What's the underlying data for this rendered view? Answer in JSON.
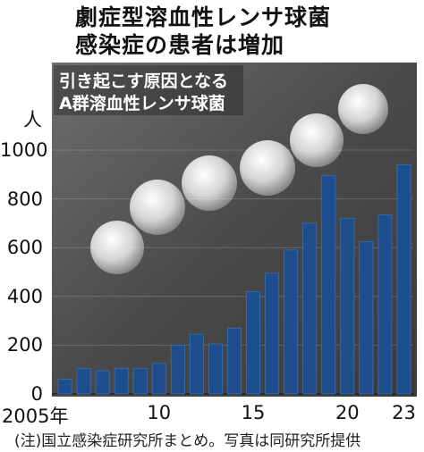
{
  "title_lines": [
    "劇症型溶血性レンサ球菌",
    "感染症の患者は増加"
  ],
  "photo_caption_lines": [
    "引き起こす原因となる",
    "A群溶血性レンサ球菌"
  ],
  "note": "(注)国立感染症研究所まとめ。写真は同研究所提供",
  "colors": {
    "bar": "#1f4e8c",
    "bar_edge": "#3b6fb3",
    "photo_bg": "#5a5a5a"
  },
  "chart_data": {
    "type": "bar",
    "title": "劇症型溶血性レンサ球菌感染症の患者は増加",
    "ylabel": "人",
    "ylim": [
      0,
      1000
    ],
    "yticks": [
      "0",
      "200",
      "400",
      "600",
      "800",
      "1000"
    ],
    "x": [
      2005,
      2006,
      2007,
      2008,
      2009,
      2010,
      2011,
      2012,
      2013,
      2014,
      2015,
      2016,
      2017,
      2018,
      2019,
      2020,
      2021,
      2022,
      2023
    ],
    "xtick_labels": [
      {
        "year": 2005,
        "label": "2005年"
      },
      {
        "year": 2010,
        "label": "10"
      },
      {
        "year": 2015,
        "label": "15"
      },
      {
        "year": 2020,
        "label": "20"
      },
      {
        "year": 2023,
        "label": "23"
      }
    ],
    "values": [
      60,
      105,
      95,
      105,
      105,
      125,
      200,
      245,
      205,
      270,
      420,
      495,
      590,
      700,
      895,
      720,
      625,
      735,
      940
    ]
  }
}
